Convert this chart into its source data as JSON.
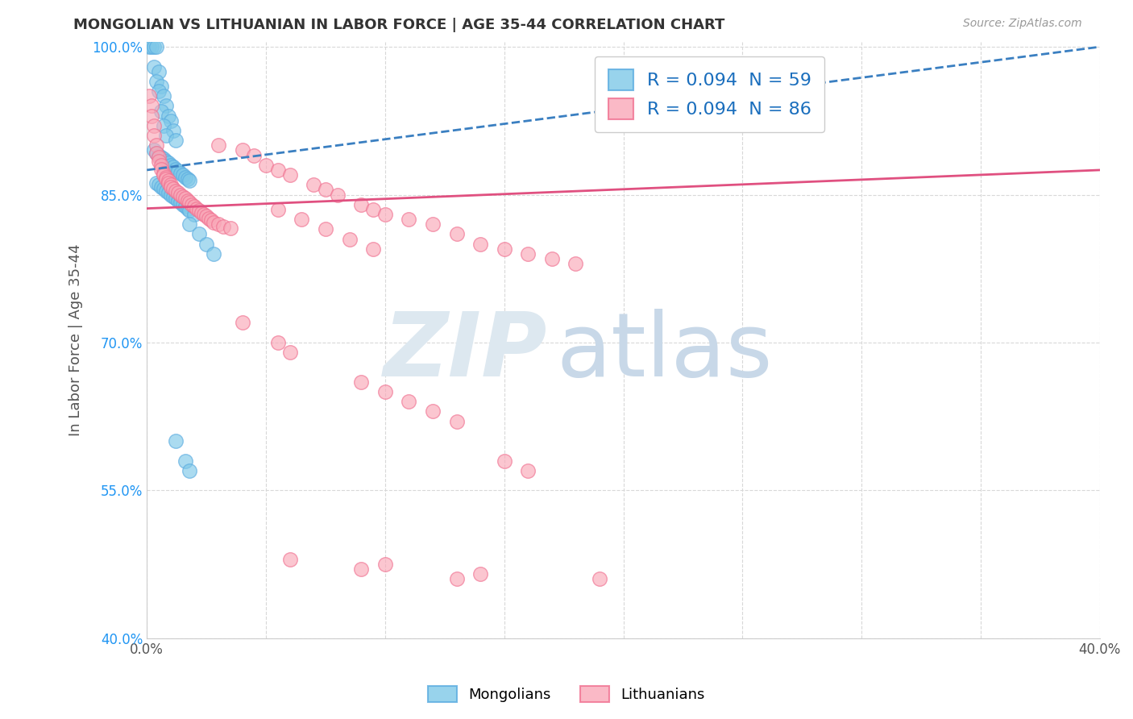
{
  "title": "MONGOLIAN VS LITHUANIAN IN LABOR FORCE | AGE 35-44 CORRELATION CHART",
  "source": "Source: ZipAtlas.com",
  "ylabel": "In Labor Force | Age 35-44",
  "xlim": [
    0.0,
    0.4
  ],
  "ylim": [
    0.4,
    1.005
  ],
  "xticks": [
    0.0,
    0.05,
    0.1,
    0.15,
    0.2,
    0.25,
    0.3,
    0.35,
    0.4
  ],
  "xticklabels": [
    "0.0%",
    "",
    "",
    "",
    "",
    "",
    "",
    "",
    "40.0%"
  ],
  "yticks": [
    0.4,
    0.55,
    0.7,
    0.85,
    1.0
  ],
  "yticklabels": [
    "40.0%",
    "55.0%",
    "70.0%",
    "85.0%",
    "100.0%"
  ],
  "mongolian_R": 0.094,
  "mongolian_N": 59,
  "lithuanian_R": 0.094,
  "lithuanian_N": 86,
  "mongolian_color": "#7fc8e8",
  "mongolian_edge": "#5aabe0",
  "lithuanian_color": "#f9a8b8",
  "lithuanian_edge": "#f07090",
  "mongolian_line_color": "#3a7fc1",
  "lithuanian_line_color": "#e05080",
  "background_color": "#ffffff",
  "grid_color": "#d8d8d8",
  "watermark_color": "#dde8f0",
  "legend_R_color": "#1a6ebd",
  "title_color": "#333333",
  "ylabel_color": "#555555",
  "ytick_color": "#2196F3",
  "xtick_color": "#555555"
}
